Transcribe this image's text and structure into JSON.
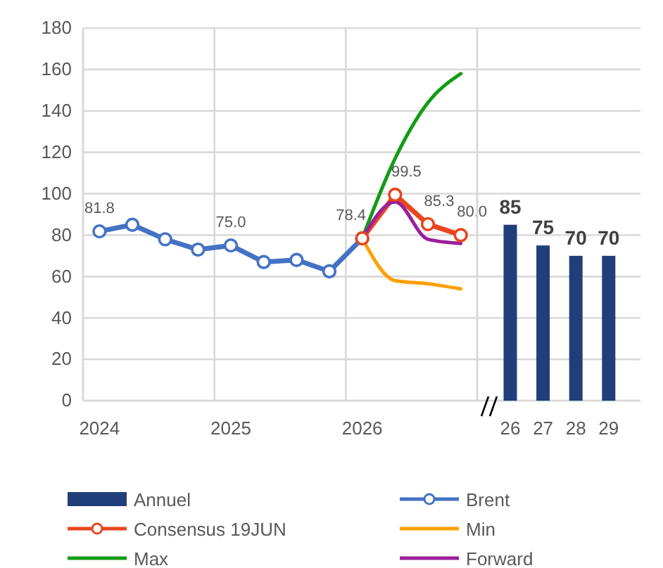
{
  "chart_data": [
    {
      "type": "line",
      "categories": [
        "2024",
        null,
        null,
        null,
        "2025",
        null,
        null,
        null,
        "2026",
        null,
        null,
        null
      ],
      "ylim": [
        0,
        180
      ],
      "yticks": [
        0,
        20,
        40,
        60,
        80,
        100,
        120,
        140,
        160,
        180
      ],
      "grid": true,
      "legend": "bottom",
      "series": [
        {
          "name": "Brent",
          "color": "#4472c4",
          "marker": "circle",
          "values": [
            81.8,
            85,
            78,
            73,
            75,
            67,
            68,
            62.5,
            78.4,
            null,
            null,
            null
          ],
          "value_labels": [
            "81.8",
            null,
            null,
            null,
            "75.0",
            null,
            null,
            null,
            null,
            null,
            null,
            null
          ]
        },
        {
          "name": "Consensus 19JUN",
          "color": "#e8461e",
          "marker": "circle",
          "values": [
            null,
            null,
            null,
            null,
            null,
            null,
            null,
            null,
            78.4,
            99.5,
            85.3,
            80.0
          ],
          "value_labels": [
            null,
            null,
            null,
            null,
            null,
            null,
            null,
            null,
            "78.4",
            "99.5",
            "85.3",
            "80.0"
          ]
        },
        {
          "name": "Min",
          "color": "#ffa000",
          "marker": "none",
          "values": [
            null,
            null,
            null,
            null,
            null,
            null,
            null,
            null,
            78.4,
            58,
            56.5,
            54
          ]
        },
        {
          "name": "Max",
          "color": "#149b14",
          "marker": "none",
          "values": [
            null,
            null,
            null,
            null,
            null,
            null,
            null,
            null,
            78.4,
            117,
            144,
            158
          ]
        },
        {
          "name": "Forward",
          "color": "#9b1f9b",
          "marker": "none",
          "values": [
            null,
            null,
            null,
            null,
            null,
            null,
            null,
            null,
            78.4,
            96,
            78,
            76
          ]
        }
      ]
    },
    {
      "type": "bar",
      "categories": [
        "26",
        "27",
        "28",
        "29"
      ],
      "ylim": [
        0,
        180
      ],
      "yticks": [
        0,
        20,
        40,
        60,
        80,
        100,
        120,
        140,
        160,
        180
      ],
      "tick_labels": "x",
      "grid": true,
      "legend": "bottom",
      "data_labels": true,
      "series": [
        {
          "name": "Annuel",
          "color": "#203f7a",
          "values": [
            85,
            75,
            70,
            70
          ]
        }
      ]
    }
  ]
}
